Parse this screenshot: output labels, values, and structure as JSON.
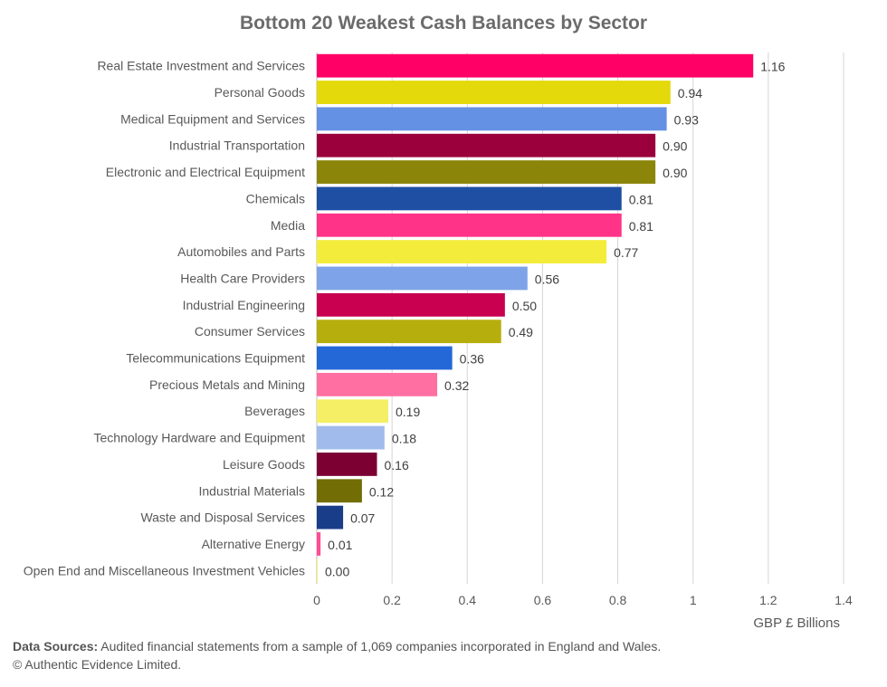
{
  "chart_data": {
    "type": "bar",
    "orientation": "horizontal",
    "title": "Bottom 20 Weakest Cash Balances by Sector",
    "xlabel": "GBP £ Billions",
    "ylabel": "",
    "xlim": [
      0,
      1.4
    ],
    "xticks": [
      "0",
      "0.2",
      "0.4",
      "0.6",
      "0.8",
      "1",
      "1.2",
      "1.4"
    ],
    "grid": "vertical",
    "categories": [
      "Real Estate Investment and Services",
      "Personal Goods",
      "Medical Equipment and Services",
      "Industrial Transportation",
      "Electronic and Electrical Equipment",
      "Chemicals",
      "Media",
      "Automobiles and Parts",
      "Health Care Providers",
      "Industrial Engineering",
      "Consumer Services",
      "Telecommunications Equipment",
      "Precious Metals and Mining",
      "Beverages",
      "Technology Hardware and Equipment",
      "Leisure Goods",
      "Industrial Materials",
      "Waste and Disposal Services",
      "Alternative Energy",
      "Open End and Miscellaneous Investment Vehicles"
    ],
    "values": [
      1.16,
      0.94,
      0.93,
      0.9,
      0.9,
      0.81,
      0.81,
      0.77,
      0.56,
      0.5,
      0.49,
      0.36,
      0.32,
      0.19,
      0.18,
      0.16,
      0.12,
      0.07,
      0.01,
      0.0
    ],
    "data_labels": [
      "1.16",
      "0.94",
      "0.93",
      "0.90",
      "0.90",
      "0.81",
      "0.81",
      "0.77",
      "0.56",
      "0.50",
      "0.49",
      "0.36",
      "0.32",
      "0.19",
      "0.18",
      "0.16",
      "0.12",
      "0.07",
      "0.01",
      "0.00"
    ],
    "colors": [
      "#ff0066",
      "#e3d90b",
      "#6591e4",
      "#9b003c",
      "#8b850a",
      "#1e4fa3",
      "#ff3388",
      "#f4ec3a",
      "#7ea3e8",
      "#c8004f",
      "#b6ae0c",
      "#2468d8",
      "#ff6fa2",
      "#f5ef66",
      "#a0bbec",
      "#7d0033",
      "#726d04",
      "#1a3d8a",
      "#ff4c94",
      "#f6ee70"
    ]
  },
  "footer": {
    "sources_label": "Data Sources:",
    "sources_text": " Audited financial statements from a sample of 1,069 companies incorporated in England and Wales.",
    "copyright": "© Authentic Evidence Limited."
  }
}
